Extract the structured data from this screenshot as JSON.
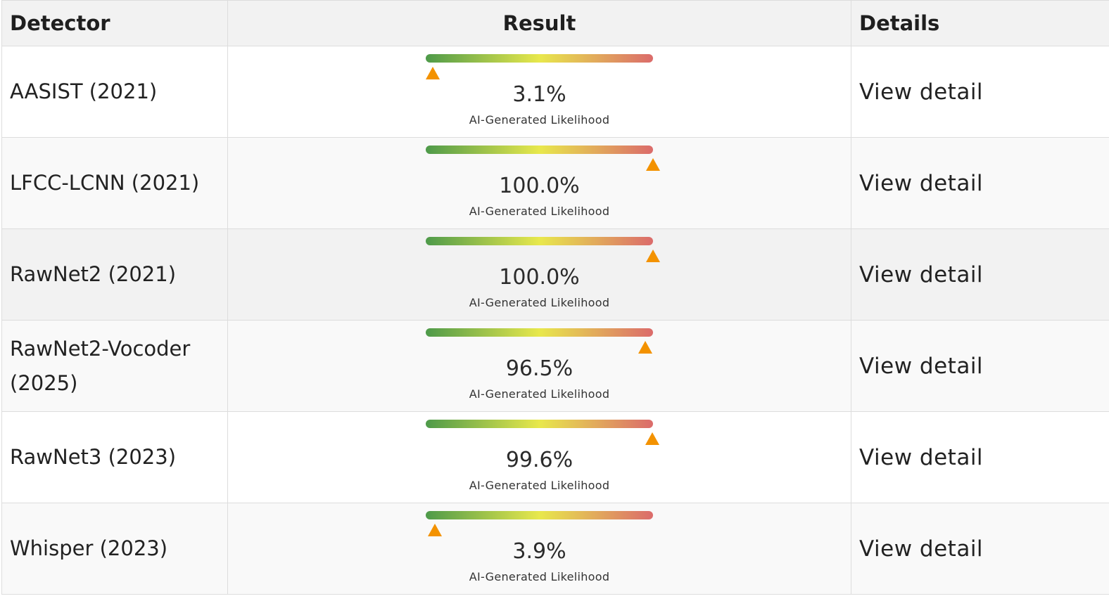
{
  "header": {
    "detector": "Detector",
    "result": "Result",
    "details": "Details"
  },
  "gauge": {
    "label": "AI-Generated Likelihood",
    "colors": [
      "#4e9a4a",
      "#e8e84c",
      "#db6b6b"
    ],
    "marker_color": "#f39200"
  },
  "rows": [
    {
      "detector": "AASIST (2021)",
      "value_text": "3.1%",
      "value": 3.1,
      "link": "View detail"
    },
    {
      "detector": "LFCC-LCNN (2021)",
      "value_text": "100.0%",
      "value": 100.0,
      "link": "View detail"
    },
    {
      "detector": "RawNet2 (2021)",
      "value_text": "100.0%",
      "value": 100.0,
      "link": "View detail"
    },
    {
      "detector": "RawNet2-Vocoder (2025)",
      "value_text": "96.5%",
      "value": 96.5,
      "link": "View detail"
    },
    {
      "detector": "RawNet3 (2023)",
      "value_text": "99.6%",
      "value": 99.6,
      "link": "View detail"
    },
    {
      "detector": "Whisper (2023)",
      "value_text": "3.9%",
      "value": 3.9,
      "link": "View detail"
    }
  ]
}
